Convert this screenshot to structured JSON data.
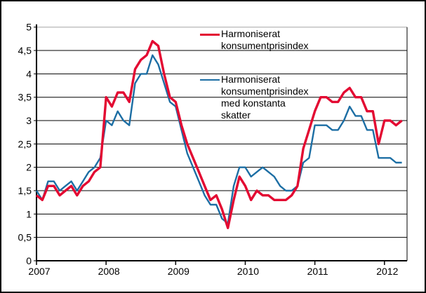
{
  "figure": {
    "background": "#ffffff",
    "border_color": "#000000",
    "axis_color": "#000000",
    "gridline_color": "#000000",
    "top_gridline_color": "#a6a6a6"
  },
  "chart_data": {
    "type": "line",
    "title": "",
    "xlabel": "",
    "ylabel": "",
    "ylim": [
      0,
      5
    ],
    "y_step": 0.5,
    "grid": "horizontal",
    "y_tick_labels": [
      "0",
      "0,5",
      "1",
      "1,5",
      "2",
      "2,5",
      "3",
      "3,5",
      "4",
      "4,5",
      "5"
    ],
    "x_tick_labels": [
      "2007",
      "2008",
      "2009",
      "2010",
      "2011",
      "2012"
    ],
    "x_unit": "month",
    "categories": [
      "2007-01",
      "2007-02",
      "2007-03",
      "2007-04",
      "2007-05",
      "2007-06",
      "2007-07",
      "2007-08",
      "2007-09",
      "2007-10",
      "2007-11",
      "2007-12",
      "2008-01",
      "2008-02",
      "2008-03",
      "2008-04",
      "2008-05",
      "2008-06",
      "2008-07",
      "2008-08",
      "2008-09",
      "2008-10",
      "2008-11",
      "2008-12",
      "2009-01",
      "2009-02",
      "2009-03",
      "2009-04",
      "2009-05",
      "2009-06",
      "2009-07",
      "2009-08",
      "2009-09",
      "2009-10",
      "2009-11",
      "2009-12",
      "2010-01",
      "2010-02",
      "2010-03",
      "2010-04",
      "2010-05",
      "2010-06",
      "2010-07",
      "2010-08",
      "2010-09",
      "2010-10",
      "2010-11",
      "2010-12",
      "2011-01",
      "2011-02",
      "2011-03",
      "2011-04",
      "2011-05",
      "2011-06",
      "2011-07",
      "2011-08",
      "2011-09",
      "2011-10",
      "2011-11",
      "2011-12",
      "2012-01",
      "2012-02",
      "2012-03",
      "2012-04"
    ],
    "series": [
      {
        "name": "Harmoniserat konsumentprisindex",
        "color": "#e30a32",
        "stroke_width": 3.4,
        "values": [
          1.4,
          1.3,
          1.6,
          1.6,
          1.4,
          1.5,
          1.6,
          1.4,
          1.6,
          1.7,
          1.9,
          2.0,
          3.5,
          3.3,
          3.6,
          3.6,
          3.4,
          4.1,
          4.3,
          4.4,
          4.7,
          4.6,
          4.0,
          3.5,
          3.4,
          2.9,
          2.5,
          2.2,
          1.9,
          1.6,
          1.3,
          1.4,
          1.1,
          0.7,
          1.3,
          1.8,
          1.6,
          1.3,
          1.5,
          1.4,
          1.4,
          1.3,
          1.3,
          1.3,
          1.4,
          1.6,
          2.4,
          2.8,
          3.2,
          3.5,
          3.5,
          3.4,
          3.4,
          3.6,
          3.7,
          3.5,
          3.5,
          3.2,
          3.2,
          2.5,
          3.0,
          3.0,
          2.9,
          3.0
        ]
      },
      {
        "name": "Harmoniserat konsumentprisindex med konstanta skatter",
        "color": "#1c6ea4",
        "stroke_width": 2.4,
        "values": [
          1.5,
          1.3,
          1.7,
          1.7,
          1.5,
          1.6,
          1.7,
          1.5,
          1.7,
          1.9,
          2.0,
          2.2,
          3.0,
          2.9,
          3.2,
          3.0,
          2.9,
          3.8,
          4.0,
          4.0,
          4.4,
          4.2,
          3.8,
          3.4,
          3.3,
          2.8,
          2.3,
          2.0,
          1.7,
          1.4,
          1.2,
          1.2,
          0.9,
          0.8,
          1.6,
          2.0,
          2.0,
          1.8,
          1.9,
          2.0,
          1.9,
          1.8,
          1.6,
          1.5,
          1.5,
          1.6,
          2.1,
          2.2,
          2.9,
          2.9,
          2.9,
          2.8,
          2.8,
          3.0,
          3.3,
          3.1,
          3.1,
          2.8,
          2.8,
          2.2,
          2.2,
          2.2,
          2.1,
          2.1
        ]
      }
    ],
    "legend": {
      "position": "top-center",
      "entries": [
        {
          "label": "Harmoniserat\nkonsumentprisindex"
        },
        {
          "label": "Harmoniserat\nkonsumentprisindex\nmed konstanta\nskatter"
        }
      ]
    }
  }
}
